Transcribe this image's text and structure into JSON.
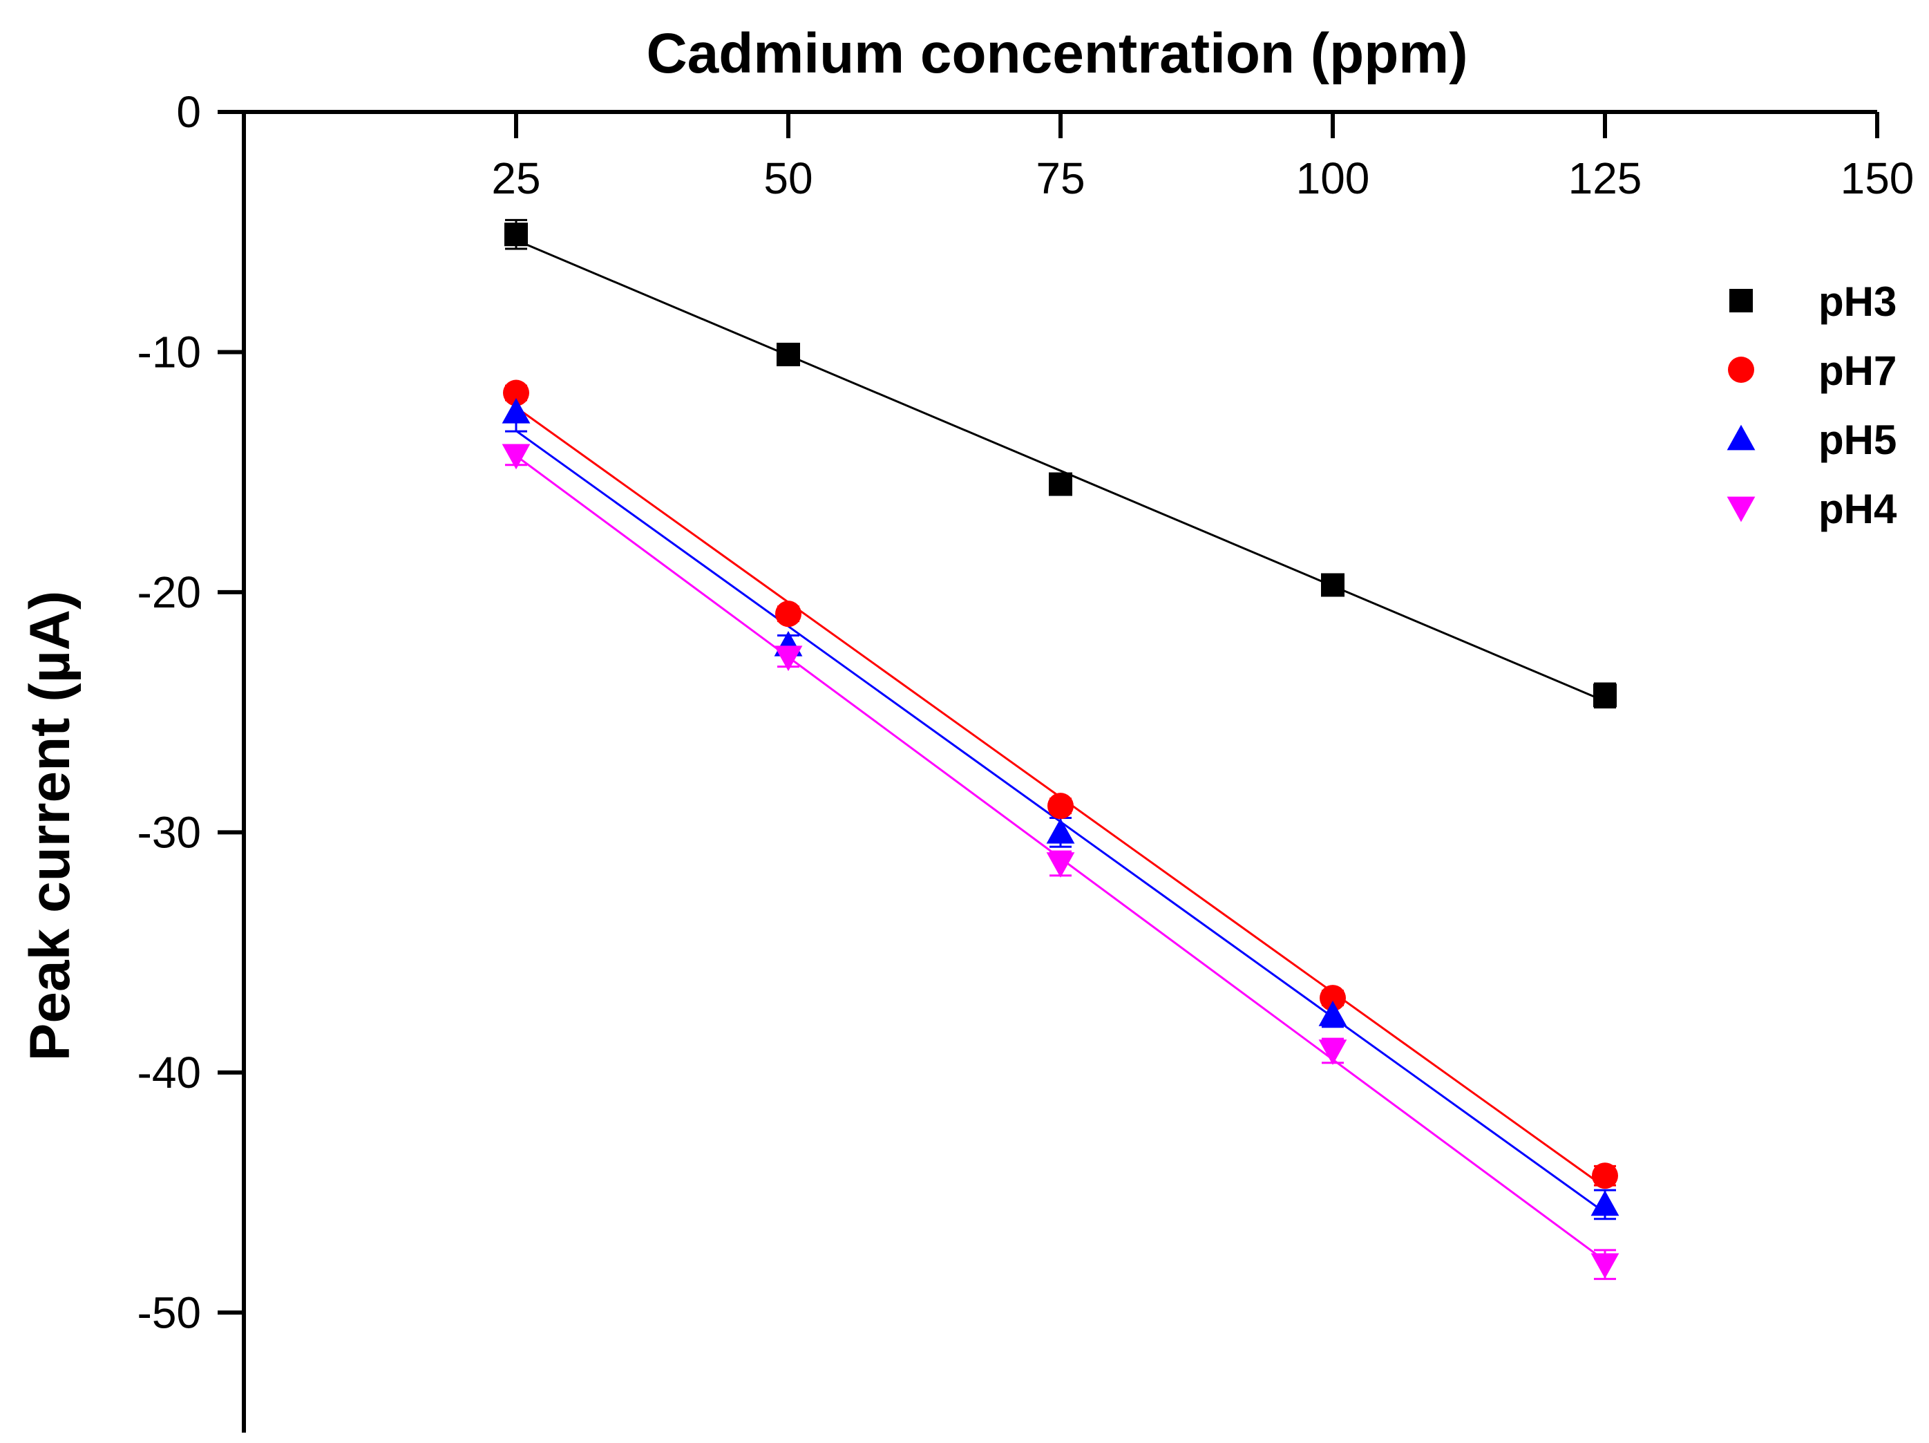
{
  "chart_data": {
    "type": "scatter",
    "xlabel": "Cadmium concentration (ppm)",
    "ylabel": "Peak current (µA)",
    "xlim": [
      0,
      150
    ],
    "ylim": [
      -55,
      0
    ],
    "x_ticks": [
      25,
      50,
      75,
      100,
      125,
      150
    ],
    "y_ticks": [
      0,
      -10,
      -20,
      -30,
      -40,
      -50
    ],
    "x_axis_position": "top",
    "grid": false,
    "legend_position": "top-right",
    "x": [
      25,
      50,
      75,
      100,
      125
    ],
    "series": [
      {
        "name": "pH3",
        "marker": "square",
        "color": "#000000",
        "values": [
          -5.1,
          -10.1,
          -15.5,
          -19.7,
          -24.3
        ],
        "error": [
          0.6,
          0.3,
          0.3,
          0.3,
          0.5
        ],
        "fit": [
          -5.3,
          24.7
        ]
      },
      {
        "name": "pH7",
        "marker": "circle",
        "color": "#ff0000",
        "values": [
          -11.7,
          -20.9,
          -28.9,
          -36.9,
          -44.3
        ],
        "error": [
          0.3,
          0.3,
          0.3,
          0.3,
          0.4
        ],
        "fit": [
          -12.0,
          44.6
        ]
      },
      {
        "name": "pH5",
        "marker": "triangle-up",
        "color": "#0000ff",
        "values": [
          -12.5,
          -22.2,
          -30.0,
          -37.6,
          -45.5
        ],
        "error": [
          0.8,
          0.4,
          0.6,
          0.5,
          0.6
        ],
        "fit": [
          -14.2,
          45.3
        ]
      },
      {
        "name": "pH4",
        "marker": "triangle-down",
        "color": "#ff00ff",
        "values": [
          -14.3,
          -22.7,
          -31.3,
          -39.1,
          -48.0
        ],
        "error": [
          0.4,
          0.4,
          0.5,
          0.5,
          0.6
        ],
        "fit": [
          -14.6,
          47.6
        ]
      }
    ]
  }
}
